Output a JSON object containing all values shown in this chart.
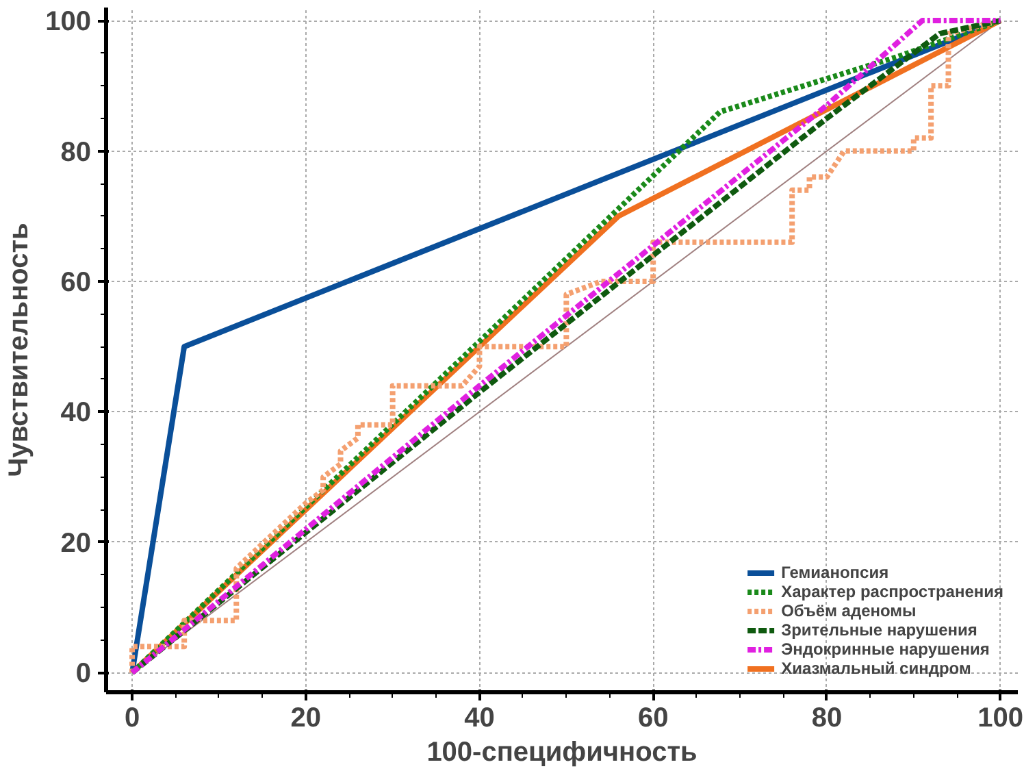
{
  "chart_data": {
    "type": "line",
    "xlabel": "100-специфичность",
    "ylabel": "Чувствительность",
    "xlim": [
      -3,
      102
    ],
    "ylim": [
      -3,
      102
    ],
    "xticks": [
      0,
      20,
      40,
      60,
      80,
      100
    ],
    "yticks": [
      0,
      20,
      40,
      60,
      80,
      100
    ],
    "grid": true,
    "legend": "bottom right",
    "series": [
      {
        "color": "#a08080",
        "line_style": "solid",
        "x": [
          0,
          100
        ],
        "values": [
          0,
          100
        ]
      },
      {
        "name": "Гемианопсия",
        "color": "#0a4f99",
        "line_style": "solid",
        "x": [
          0,
          6,
          100
        ],
        "values": [
          0,
          50,
          100
        ]
      },
      {
        "name": "Характер распространения",
        "color": "#1a8a1a",
        "line_style": "dotted",
        "x": [
          0,
          67.7,
          88,
          100
        ],
        "values": [
          0,
          86,
          94.4,
          100
        ]
      },
      {
        "name": "Объём аденомы",
        "color": "#f4a070",
        "line_style": "dotted",
        "x": [
          0,
          0,
          6,
          6,
          12,
          12,
          20,
          22,
          22,
          24,
          24,
          26,
          26,
          30,
          30,
          38,
          40,
          40,
          50,
          50,
          54,
          60,
          60,
          76,
          76,
          78,
          78,
          80,
          82,
          90,
          90,
          92,
          92,
          94,
          94,
          100
        ],
        "values": [
          0,
          4,
          4,
          8,
          8,
          16,
          26,
          28,
          30,
          32,
          34,
          36,
          38,
          38,
          44,
          44,
          47,
          50,
          50,
          58,
          60,
          60,
          66,
          66,
          74,
          74,
          76,
          76,
          80,
          80,
          82,
          82,
          90,
          90,
          98,
          100
        ]
      },
      {
        "name": "Зрительные нарушения",
        "color": "#0f5a0f",
        "line_style": "dashed",
        "x": [
          0,
          20,
          40,
          60,
          80,
          90,
          93,
          100
        ],
        "values": [
          0,
          21.5,
          43,
          64,
          85,
          95,
          98,
          100
        ]
      },
      {
        "name": "Эндокринные нарушения",
        "color": "#e020e0",
        "line_style": "dashdot",
        "x": [
          0,
          20,
          40,
          60,
          80,
          91,
          100
        ],
        "values": [
          0,
          22,
          44,
          65.5,
          87,
          100,
          100
        ]
      },
      {
        "name": "Хиазмальный синдром",
        "color": "#f07020",
        "line_style": "solid",
        "x": [
          0,
          56,
          100
        ],
        "values": [
          0,
          70,
          100
        ]
      }
    ]
  }
}
